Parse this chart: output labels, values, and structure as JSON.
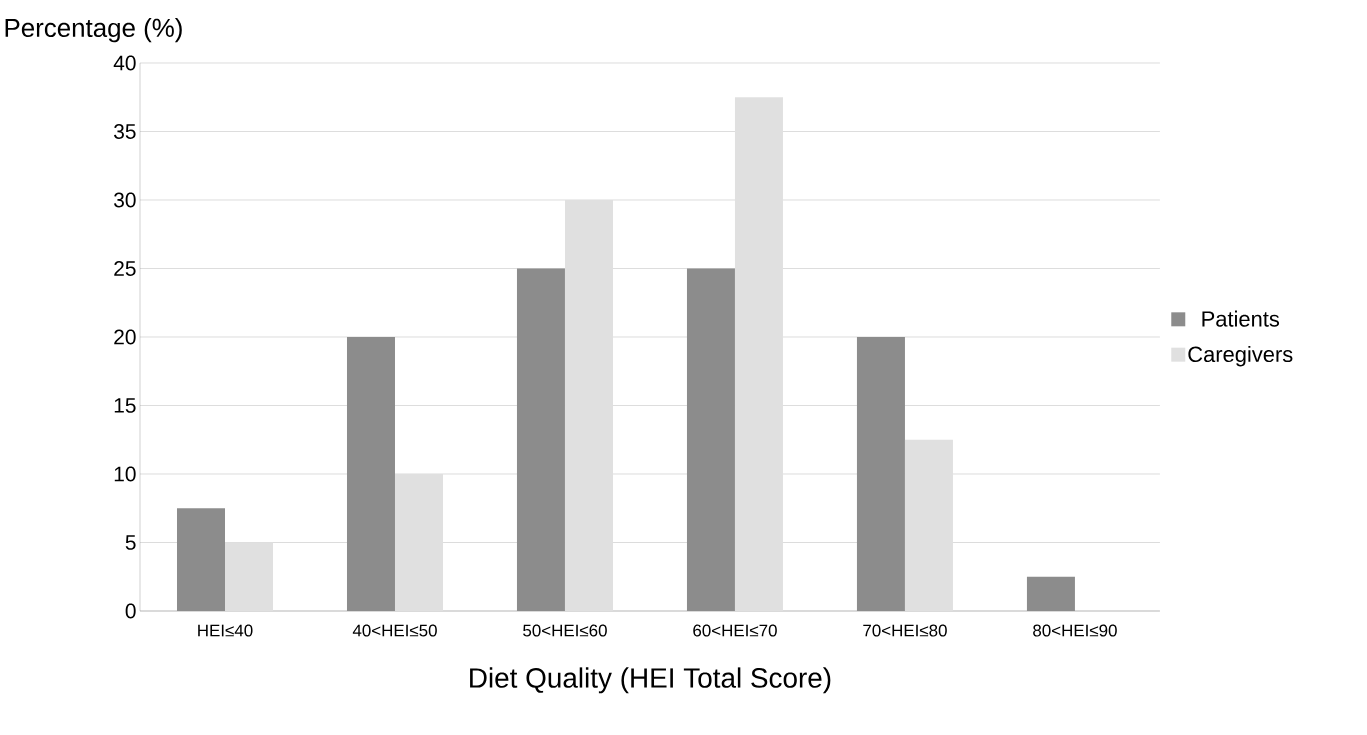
{
  "chart_data": {
    "type": "bar",
    "xlabel": "Diet Quality (HEI Total Score)",
    "ylabel": "Percentage (%)",
    "categories": [
      "HEI≤40",
      "40<HEI≤50",
      "50<HEI≤60",
      "60<HEI≤70",
      "70<HEI≤80",
      "80<HEI≤90"
    ],
    "series": [
      {
        "name": "Patients",
        "color": "#8c8c8c",
        "values": [
          7.5,
          20,
          25,
          25,
          20,
          2.5
        ]
      },
      {
        "name": "Caregivers",
        "color": "#e0e0e0",
        "values": [
          5,
          10,
          30,
          37.5,
          12.5,
          0
        ]
      }
    ],
    "ylim": [
      0,
      40
    ],
    "yticks": [
      0,
      5,
      10,
      15,
      20,
      25,
      30,
      35,
      40
    ],
    "grid": "y",
    "legend": "right"
  }
}
